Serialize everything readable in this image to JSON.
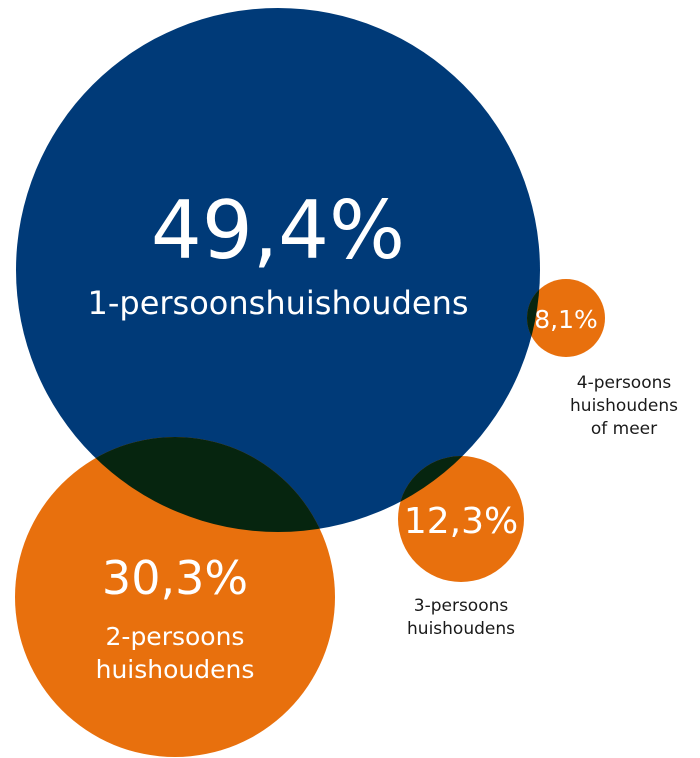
{
  "chart_data": {
    "type": "bubble",
    "title": "",
    "unit": "%",
    "colors": {
      "dark": "#003a78",
      "accent": "#e8700d",
      "overlap": "#06250f",
      "background": "#ffffff"
    },
    "bubbles": [
      {
        "id": "p1",
        "value": 49.4,
        "value_label": "49,4%",
        "label_lines": [
          "1-persoonshuishoudens"
        ],
        "color": "#003a78"
      },
      {
        "id": "p2",
        "value": 30.3,
        "value_label": "30,3%",
        "label_lines": [
          "2-persoons",
          "huishoudens"
        ],
        "color": "#e8700d"
      },
      {
        "id": "p3",
        "value": 12.3,
        "value_label": "12,3%",
        "label_lines": [
          "3-persoons",
          "huishoudens"
        ],
        "color": "#e8700d"
      },
      {
        "id": "p4",
        "value": 8.1,
        "value_label": "8,1%",
        "label_lines": [
          "4-persoons",
          "huishoudens",
          "of meer"
        ],
        "color": "#e8700d"
      }
    ]
  }
}
